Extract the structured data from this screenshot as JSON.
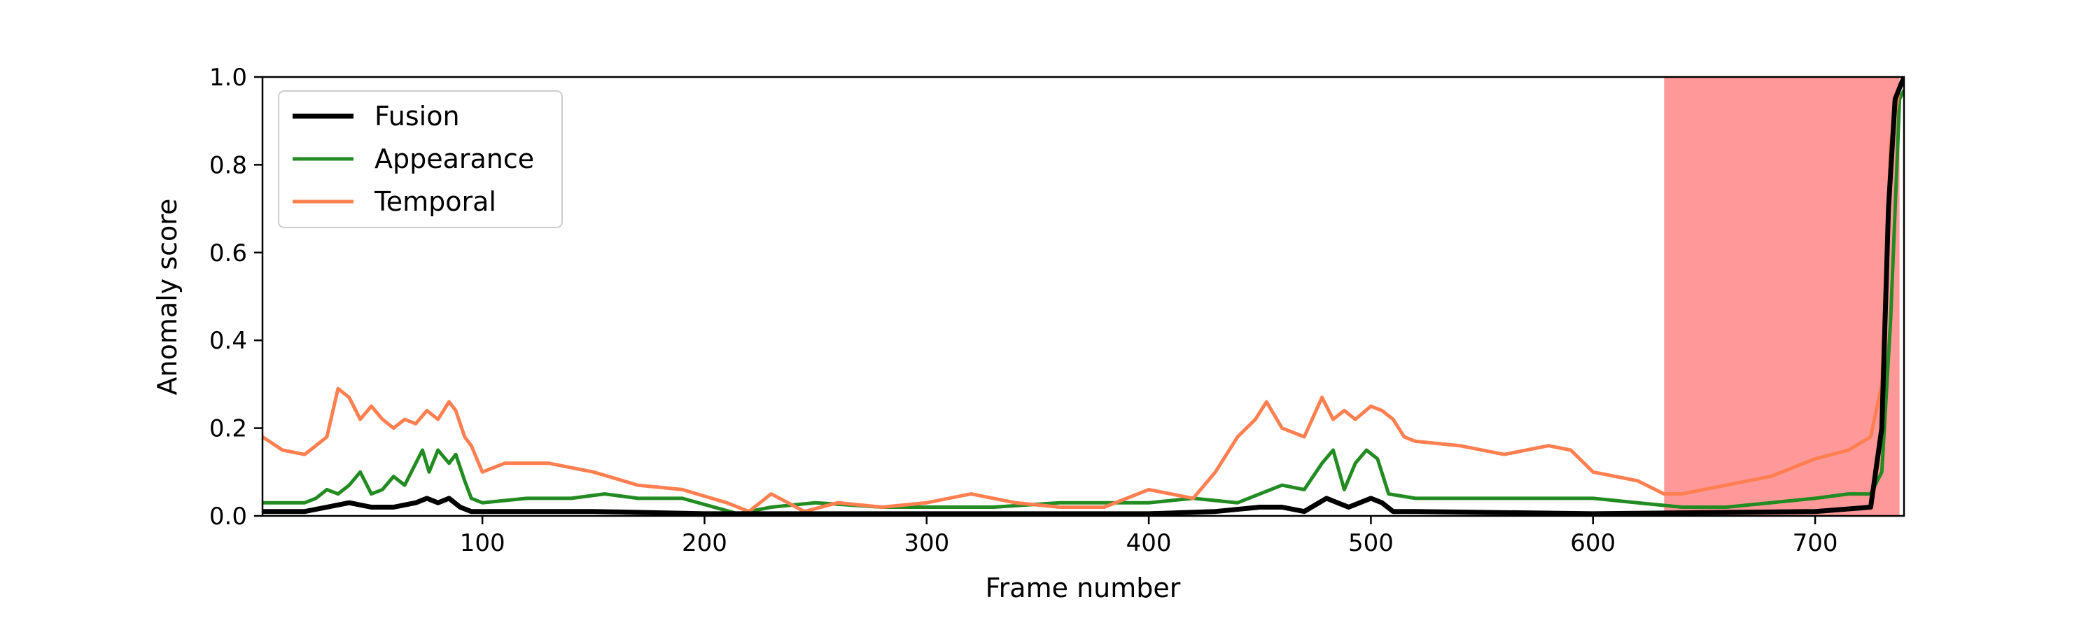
{
  "chart_data": {
    "type": "line",
    "xlabel": "Frame number",
    "ylabel": "Anomaly score",
    "xlim": [
      1,
      740
    ],
    "ylim": [
      0,
      1.0
    ],
    "xticks": [
      100,
      200,
      300,
      400,
      500,
      600,
      700
    ],
    "yticks": [
      0.0,
      0.2,
      0.4,
      0.6,
      0.8,
      1.0
    ],
    "xtick_labels": [
      "100",
      "200",
      "300",
      "400",
      "500",
      "600",
      "700"
    ],
    "ytick_labels": [
      "0.0",
      "0.2",
      "0.4",
      "0.6",
      "0.8",
      "1.0"
    ],
    "grid": false,
    "legend_position": "top-left",
    "anomaly_region": {
      "x_start": 632,
      "x_end": 738,
      "color": "#ff9999"
    },
    "series": [
      {
        "name": "Fusion",
        "color": "#000000",
        "x": [
          1,
          20,
          30,
          40,
          50,
          60,
          70,
          75,
          80,
          85,
          90,
          95,
          100,
          150,
          200,
          250,
          300,
          350,
          400,
          430,
          450,
          460,
          470,
          480,
          485,
          490,
          500,
          505,
          510,
          520,
          600,
          700,
          725,
          730,
          733,
          736,
          740
        ],
        "y": [
          0.01,
          0.01,
          0.02,
          0.03,
          0.02,
          0.02,
          0.03,
          0.04,
          0.03,
          0.04,
          0.02,
          0.01,
          0.01,
          0.01,
          0.005,
          0.005,
          0.005,
          0.005,
          0.005,
          0.01,
          0.02,
          0.02,
          0.01,
          0.04,
          0.03,
          0.02,
          0.04,
          0.03,
          0.01,
          0.01,
          0.005,
          0.01,
          0.02,
          0.2,
          0.7,
          0.95,
          1.0
        ]
      },
      {
        "name": "Appearance",
        "color": "#228b22",
        "x": [
          1,
          10,
          20,
          25,
          30,
          35,
          40,
          45,
          50,
          55,
          60,
          65,
          70,
          73,
          76,
          80,
          85,
          88,
          92,
          95,
          100,
          120,
          140,
          155,
          170,
          190,
          215,
          230,
          250,
          280,
          300,
          330,
          360,
          400,
          420,
          440,
          450,
          460,
          470,
          478,
          483,
          488,
          493,
          498,
          503,
          508,
          520,
          550,
          580,
          600,
          620,
          640,
          660,
          680,
          700,
          715,
          725,
          730,
          734,
          738,
          740
        ],
        "y": [
          0.03,
          0.03,
          0.03,
          0.04,
          0.06,
          0.05,
          0.07,
          0.1,
          0.05,
          0.06,
          0.09,
          0.07,
          0.12,
          0.15,
          0.1,
          0.15,
          0.12,
          0.14,
          0.08,
          0.04,
          0.03,
          0.04,
          0.04,
          0.05,
          0.04,
          0.04,
          0.005,
          0.02,
          0.03,
          0.02,
          0.02,
          0.02,
          0.03,
          0.03,
          0.04,
          0.03,
          0.05,
          0.07,
          0.06,
          0.12,
          0.15,
          0.06,
          0.12,
          0.15,
          0.13,
          0.05,
          0.04,
          0.04,
          0.04,
          0.04,
          0.03,
          0.02,
          0.02,
          0.03,
          0.04,
          0.05,
          0.05,
          0.1,
          0.45,
          0.95,
          0.97
        ]
      },
      {
        "name": "Temporal",
        "color": "#ff7f50",
        "x": [
          1,
          10,
          20,
          25,
          30,
          35,
          40,
          45,
          50,
          55,
          60,
          65,
          70,
          75,
          80,
          85,
          88,
          92,
          95,
          100,
          110,
          130,
          150,
          170,
          190,
          210,
          220,
          230,
          245,
          260,
          280,
          300,
          320,
          340,
          360,
          380,
          400,
          420,
          430,
          440,
          448,
          453,
          460,
          470,
          478,
          483,
          488,
          493,
          500,
          505,
          510,
          515,
          520,
          540,
          560,
          580,
          590,
          600,
          620,
          632,
          640,
          660,
          680,
          700,
          715,
          725,
          730,
          734,
          738,
          740
        ],
        "y": [
          0.18,
          0.15,
          0.14,
          0.16,
          0.18,
          0.29,
          0.27,
          0.22,
          0.25,
          0.22,
          0.2,
          0.22,
          0.21,
          0.24,
          0.22,
          0.26,
          0.24,
          0.18,
          0.16,
          0.1,
          0.12,
          0.12,
          0.1,
          0.07,
          0.06,
          0.03,
          0.01,
          0.05,
          0.01,
          0.03,
          0.02,
          0.03,
          0.05,
          0.03,
          0.02,
          0.02,
          0.06,
          0.04,
          0.1,
          0.18,
          0.22,
          0.26,
          0.2,
          0.18,
          0.27,
          0.22,
          0.24,
          0.22,
          0.25,
          0.24,
          0.22,
          0.18,
          0.17,
          0.16,
          0.14,
          0.16,
          0.15,
          0.1,
          0.08,
          0.05,
          0.05,
          0.07,
          0.09,
          0.13,
          0.15,
          0.18,
          0.3,
          0.85,
          0.98,
          1.0
        ]
      }
    ]
  }
}
